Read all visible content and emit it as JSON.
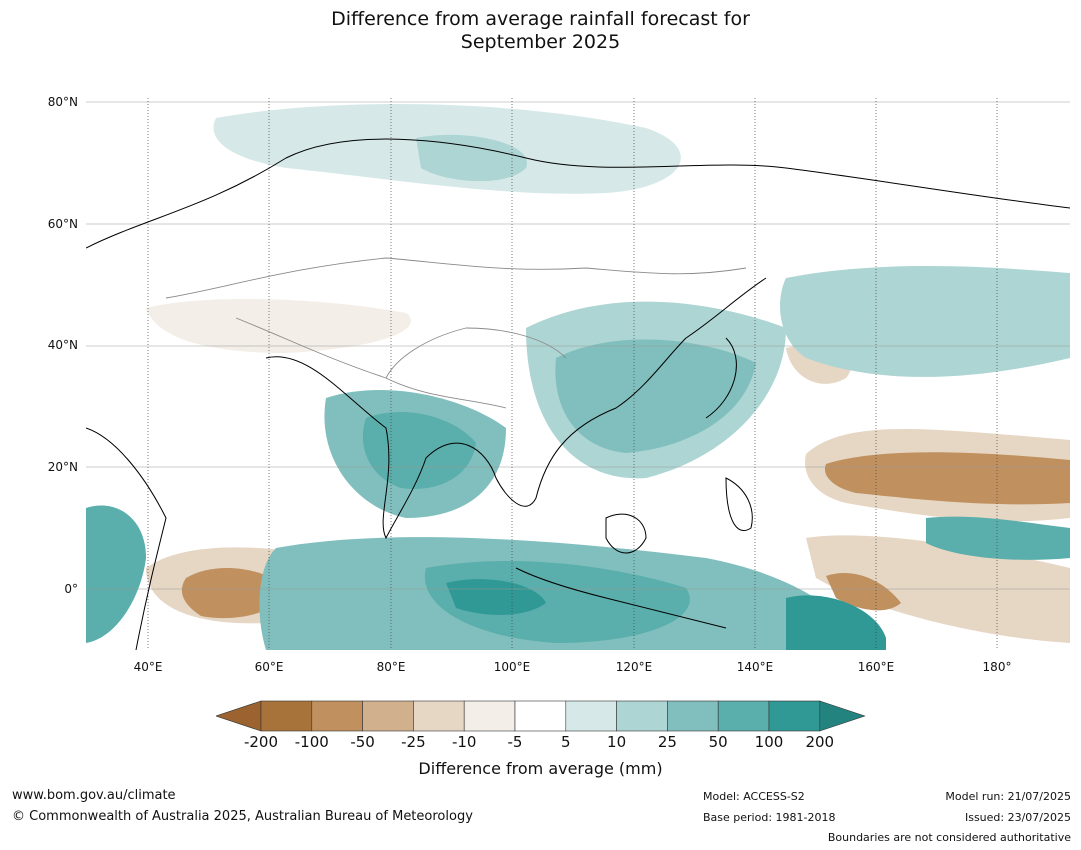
{
  "title_line1": "Difference from average rainfall forecast for",
  "title_line2": "September 2025",
  "lat_labels": [
    "80°N",
    "60°N",
    "40°N",
    "20°N",
    "0°"
  ],
  "lon_labels": [
    "40°E",
    "60°E",
    "80°E",
    "100°E",
    "120°E",
    "140°E",
    "160°E",
    "180°"
  ],
  "colorbar": {
    "ticks": [
      "-200",
      "-100",
      "-50",
      "-25",
      "-10",
      "-5",
      "5",
      "10",
      "25",
      "50",
      "100",
      "200"
    ],
    "colors": [
      "#9c6330",
      "#a8733b",
      "#c0915f",
      "#d1b08d",
      "#e6d6c4",
      "#f3eee8",
      "#ffffff",
      "#d6e9e8",
      "#acd5d3",
      "#80bfbd",
      "#5aaeab",
      "#319995",
      "#23837f"
    ],
    "title": "Difference from average (mm)"
  },
  "footer": {
    "url": "www.bom.gov.au/climate",
    "copyright": "© Commonwealth of Australia 2025, Australian Bureau of Meteorology",
    "model": "Model: ACCESS-S2",
    "base_period": "Base period: 1981-2018",
    "model_run": "Model run: 21/07/2025",
    "issued": "Issued: 23/07/2025",
    "disclaimer": "Boundaries are not considered authoritative"
  }
}
